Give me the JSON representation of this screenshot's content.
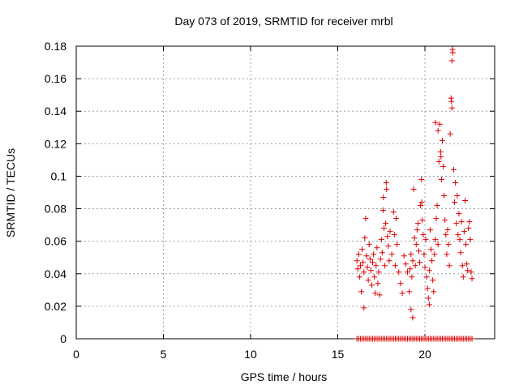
{
  "chart_data": {
    "type": "scatter",
    "title": "Day 073 of 2019, SRMTID for receiver mrbl",
    "xlabel": "GPS time / hours",
    "ylabel": "SRMTID / TECUs",
    "xlim": [
      0,
      24
    ],
    "ylim": [
      0,
      0.18
    ],
    "xticks": [
      0,
      5,
      10,
      15,
      20
    ],
    "xtick_labels": [
      "0",
      "5",
      "10",
      "15",
      "20"
    ],
    "yticks": [
      0,
      0.02,
      0.04,
      0.06,
      0.08,
      0.1,
      0.12,
      0.14,
      0.16,
      0.18
    ],
    "ytick_labels": [
      "0",
      "0.02",
      "0.04",
      "0.06",
      "0.08",
      "0.1",
      "0.12",
      "0.14",
      "0.16",
      "0.18"
    ],
    "grid": true,
    "marker": "+",
    "series": [
      {
        "name": "",
        "color": "#dd0000",
        "points": [
          [
            16.1,
            0.048
          ],
          [
            16.15,
            0.043
          ],
          [
            16.2,
            0.052
          ],
          [
            16.25,
            0.038
          ],
          [
            16.3,
            0.045
          ],
          [
            16.35,
            0.029
          ],
          [
            16.4,
            0.055
          ],
          [
            16.45,
            0.047
          ],
          [
            16.5,
            0.041
          ],
          [
            16.55,
            0.062
          ],
          [
            16.6,
            0.074
          ],
          [
            16.65,
            0.051
          ],
          [
            16.7,
            0.044
          ],
          [
            16.75,
            0.036
          ],
          [
            16.8,
            0.058
          ],
          [
            16.85,
            0.049
          ],
          [
            16.9,
            0.042
          ],
          [
            16.95,
            0.033
          ],
          [
            17.0,
            0.047
          ],
          [
            17.05,
            0.052
          ],
          [
            17.1,
            0.038
          ],
          [
            17.15,
            0.028
          ],
          [
            17.2,
            0.045
          ],
          [
            17.25,
            0.056
          ],
          [
            17.3,
            0.034
          ],
          [
            17.35,
            0.041
          ],
          [
            17.4,
            0.027
          ],
          [
            17.45,
            0.049
          ],
          [
            17.5,
            0.061
          ],
          [
            17.55,
            0.053
          ],
          [
            17.6,
            0.079
          ],
          [
            17.65,
            0.068
          ],
          [
            17.7,
            0.045
          ],
          [
            17.75,
            0.071
          ],
          [
            17.8,
            0.092
          ],
          [
            17.85,
            0.063
          ],
          [
            17.9,
            0.057
          ],
          [
            17.95,
            0.048
          ],
          [
            18.0,
            0.066
          ],
          [
            18.1,
            0.052
          ],
          [
            18.2,
            0.078
          ],
          [
            18.25,
            0.064
          ],
          [
            18.3,
            0.045
          ],
          [
            18.35,
            0.074
          ],
          [
            18.4,
            0.058
          ],
          [
            18.5,
            0.041
          ],
          [
            19.1,
            0.029
          ],
          [
            19.15,
            0.043
          ],
          [
            19.2,
            0.052
          ],
          [
            19.25,
            0.038
          ],
          [
            19.3,
            0.048
          ],
          [
            19.35,
            0.092
          ],
          [
            19.4,
            0.062
          ],
          [
            19.45,
            0.045
          ],
          [
            19.5,
            0.058
          ],
          [
            19.55,
            0.067
          ],
          [
            19.6,
            0.071
          ],
          [
            19.65,
            0.054
          ],
          [
            19.7,
            0.047
          ],
          [
            19.75,
            0.082
          ],
          [
            19.8,
            0.098
          ],
          [
            19.85,
            0.073
          ],
          [
            19.9,
            0.064
          ],
          [
            19.95,
            0.052
          ],
          [
            20.0,
            0.044
          ],
          [
            20.05,
            0.061
          ],
          [
            20.1,
            0.038
          ],
          [
            20.15,
            0.031
          ],
          [
            20.2,
            0.025
          ],
          [
            20.25,
            0.042
          ],
          [
            20.3,
            0.067
          ],
          [
            20.35,
            0.055
          ],
          [
            20.4,
            0.048
          ],
          [
            20.45,
            0.036
          ],
          [
            20.5,
            0.029
          ],
          [
            20.55,
            0.052
          ],
          [
            20.6,
            0.061
          ],
          [
            20.65,
            0.074
          ],
          [
            20.7,
            0.082
          ],
          [
            20.75,
            0.058
          ],
          [
            20.8,
            0.109
          ],
          [
            20.85,
            0.132
          ],
          [
            20.9,
            0.115
          ],
          [
            20.95,
            0.098
          ],
          [
            21.0,
            0.122
          ],
          [
            21.05,
            0.106
          ],
          [
            21.1,
            0.088
          ],
          [
            21.15,
            0.073
          ],
          [
            21.2,
            0.064
          ],
          [
            21.25,
            0.052
          ],
          [
            21.3,
            0.067
          ],
          [
            21.35,
            0.058
          ],
          [
            21.4,
            0.045
          ],
          [
            21.45,
            0.126
          ],
          [
            21.5,
            0.148
          ],
          [
            21.55,
            0.142
          ],
          [
            21.6,
            0.176
          ],
          [
            21.65,
            0.104
          ],
          [
            21.7,
            0.084
          ],
          [
            21.75,
            0.096
          ],
          [
            21.8,
            0.071
          ],
          [
            21.85,
            0.088
          ],
          [
            21.9,
            0.064
          ],
          [
            21.95,
            0.077
          ],
          [
            22.0,
            0.061
          ],
          [
            22.05,
            0.053
          ],
          [
            22.1,
            0.072
          ],
          [
            22.15,
            0.045
          ],
          [
            22.2,
            0.038
          ],
          [
            22.25,
            0.066
          ],
          [
            22.3,
            0.085
          ],
          [
            22.35,
            0.058
          ],
          [
            22.4,
            0.046
          ],
          [
            22.45,
            0.042
          ],
          [
            22.5,
            0.068
          ],
          [
            22.55,
            0.072
          ],
          [
            22.6,
            0.061
          ],
          [
            22.65,
            0.041
          ],
          [
            22.7,
            0.037
          ],
          [
            18.6,
            0.034
          ],
          [
            18.7,
            0.028
          ],
          [
            18.8,
            0.051
          ],
          [
            18.9,
            0.046
          ],
          [
            19.0,
            0.041
          ],
          [
            21.55,
            0.171
          ],
          [
            21.58,
            0.178
          ],
          [
            21.52,
            0.146
          ],
          [
            20.6,
            0.133
          ],
          [
            20.75,
            0.128
          ],
          [
            20.92,
            0.112
          ],
          [
            19.82,
            0.084
          ],
          [
            17.78,
            0.096
          ],
          [
            17.62,
            0.087
          ],
          [
            19.2,
            0.018
          ],
          [
            19.3,
            0.013
          ],
          [
            20.25,
            0.021
          ],
          [
            16.5,
            0.019
          ],
          [
            16.1,
            0
          ],
          [
            16.2,
            0
          ],
          [
            16.3,
            0
          ],
          [
            16.4,
            0
          ],
          [
            16.5,
            0
          ],
          [
            16.6,
            0
          ],
          [
            16.7,
            0
          ],
          [
            16.8,
            0
          ],
          [
            16.9,
            0
          ],
          [
            17.0,
            0
          ],
          [
            17.1,
            0
          ],
          [
            17.2,
            0
          ],
          [
            17.3,
            0
          ],
          [
            17.4,
            0
          ],
          [
            17.5,
            0
          ],
          [
            17.6,
            0
          ],
          [
            17.7,
            0
          ],
          [
            17.8,
            0
          ],
          [
            17.9,
            0
          ],
          [
            18.0,
            0
          ],
          [
            18.1,
            0
          ],
          [
            18.2,
            0
          ],
          [
            18.3,
            0
          ],
          [
            18.4,
            0
          ],
          [
            18.5,
            0
          ],
          [
            18.6,
            0
          ],
          [
            18.7,
            0
          ],
          [
            18.8,
            0
          ],
          [
            18.9,
            0
          ],
          [
            19.0,
            0
          ],
          [
            19.1,
            0
          ],
          [
            19.2,
            0
          ],
          [
            19.3,
            0
          ],
          [
            19.4,
            0
          ],
          [
            19.5,
            0
          ],
          [
            19.6,
            0
          ],
          [
            19.7,
            0
          ],
          [
            19.8,
            0
          ],
          [
            19.9,
            0
          ],
          [
            20.0,
            0
          ],
          [
            20.1,
            0
          ],
          [
            20.2,
            0
          ],
          [
            20.3,
            0
          ],
          [
            20.4,
            0
          ],
          [
            20.5,
            0
          ],
          [
            20.6,
            0
          ],
          [
            20.7,
            0
          ],
          [
            20.8,
            0
          ],
          [
            20.9,
            0
          ],
          [
            21.0,
            0
          ],
          [
            21.1,
            0
          ],
          [
            21.2,
            0
          ],
          [
            21.3,
            0
          ],
          [
            21.4,
            0
          ],
          [
            21.5,
            0
          ],
          [
            21.6,
            0
          ],
          [
            21.7,
            0
          ],
          [
            21.8,
            0
          ],
          [
            21.9,
            0
          ],
          [
            22.0,
            0
          ],
          [
            22.1,
            0
          ],
          [
            22.2,
            0
          ],
          [
            22.3,
            0
          ],
          [
            22.4,
            0
          ],
          [
            22.5,
            0
          ],
          [
            22.6,
            0
          ],
          [
            22.7,
            0
          ]
        ]
      }
    ]
  }
}
